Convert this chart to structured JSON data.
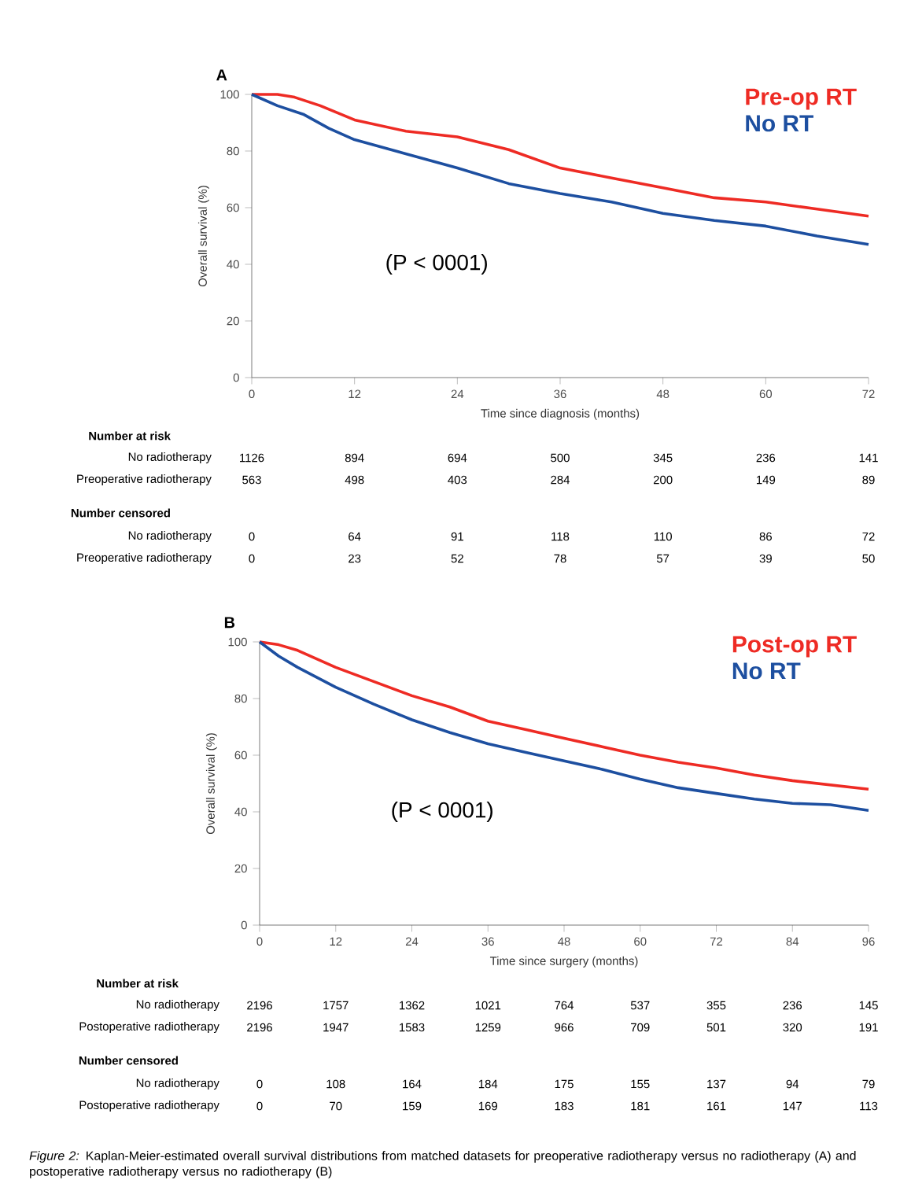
{
  "chart_data": [
    {
      "type": "line",
      "title": "A",
      "xlabel": "Time since diagnosis (months)",
      "ylabel": "Overall survival (%)",
      "xlim": [
        0,
        72
      ],
      "xticks": [
        0,
        12,
        24,
        36,
        48,
        60,
        72
      ],
      "ylim": [
        0,
        100
      ],
      "yticks": [
        0,
        20,
        40,
        60,
        80,
        100
      ],
      "legend": "top right",
      "series": [
        {
          "name": "Pre-op RT",
          "color": "#ee2b24",
          "x": [
            0,
            3,
            5,
            8,
            12,
            18,
            24,
            30,
            36,
            42,
            48,
            54,
            60,
            66,
            72
          ],
          "values": [
            100,
            100,
            99,
            96,
            91,
            87,
            85,
            80.5,
            74,
            70.5,
            67,
            63.5,
            62,
            59.5,
            57
          ]
        },
        {
          "name": "No RT",
          "color": "#1d4fa0",
          "x": [
            0,
            3,
            6,
            9,
            12,
            18,
            24,
            30,
            36,
            42,
            48,
            54,
            60,
            66,
            72
          ],
          "values": [
            100,
            96,
            93,
            88,
            84,
            79,
            74,
            68.5,
            65,
            62,
            58,
            55.5,
            53.5,
            50,
            47
          ]
        }
      ],
      "annotations": [
        "(P < 0001)",
        "Number at risk",
        "No radiotherapy",
        "1126",
        "894",
        "694",
        "500",
        "345",
        "236",
        "141",
        "Preoperative radiotherapy",
        "563",
        "498",
        "403",
        "284",
        "200",
        "149",
        "89",
        "Number censored",
        "No radiotherapy",
        "0",
        "64",
        "91",
        "118",
        "110",
        "86",
        "72",
        "Preoperative radiotherapy",
        "0",
        "23",
        "52",
        "78",
        "57",
        "39",
        "50"
      ]
    },
    {
      "type": "line",
      "title": "B",
      "xlabel": "Time since surgery (months)",
      "ylabel": "Overall survival (%)",
      "xlim": [
        0,
        96
      ],
      "xticks": [
        0,
        12,
        24,
        36,
        48,
        60,
        72,
        84,
        96
      ],
      "ylim": [
        0,
        100
      ],
      "yticks": [
        0,
        20,
        40,
        60,
        80,
        100
      ],
      "legend": "top right",
      "series": [
        {
          "name": "Post-op RT",
          "color": "#ee2b24",
          "x": [
            0,
            3,
            6,
            12,
            18,
            24,
            30,
            36,
            42,
            48,
            54,
            60,
            66,
            72,
            78,
            84,
            90,
            96
          ],
          "values": [
            100,
            99,
            97,
            91,
            86,
            81,
            77,
            72,
            69,
            66,
            63,
            60,
            57.5,
            55.5,
            53,
            51,
            49.5,
            48
          ]
        },
        {
          "name": "No RT",
          "color": "#1d4fa0",
          "x": [
            0,
            3,
            6,
            12,
            18,
            24,
            30,
            36,
            42,
            48,
            54,
            60,
            66,
            72,
            78,
            84,
            90,
            96
          ],
          "values": [
            100,
            95,
            91,
            84,
            78,
            72.5,
            68,
            64,
            61,
            58,
            55,
            51.5,
            48.5,
            46.5,
            44.5,
            43,
            42.5,
            40.5
          ]
        }
      ],
      "annotations": [
        "(P < 0001)",
        "Number at risk",
        "No radiotherapy",
        "2196",
        "1757",
        "1362",
        "1021",
        "764",
        "537",
        "355",
        "236",
        "145",
        "Postoperative radiotherapy",
        "2196",
        "1947",
        "1583",
        "1259",
        "966",
        "709",
        "501",
        "320",
        "191",
        "Number censored",
        "No radiotherapy",
        "0",
        "108",
        "164",
        "184",
        "175",
        "155",
        "137",
        "94",
        "79",
        "Postoperative radiotherapy",
        "0",
        "70",
        "159",
        "169",
        "183",
        "181",
        "161",
        "147",
        "113",
        "*Figure 2:* Kaplan-Meier-estimated overall survival distributions from matched datasets for preoperative radiotherapy versus no radiotherapy (A) and postoperative radiotherapy versus no radiotherapy (B)"
      ]
    }
  ]
}
